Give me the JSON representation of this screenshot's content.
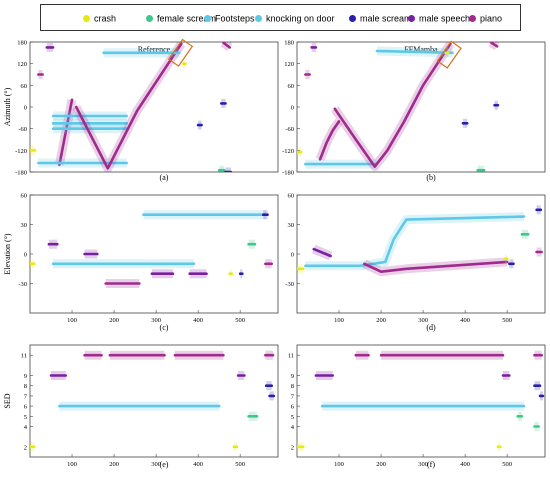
{
  "legend": [
    {
      "label": "crash",
      "color": "#e8e814"
    },
    {
      "label": "female scream",
      "color": "#3ec98a"
    },
    {
      "label": "Footsteps",
      "color": "#5ec8e6"
    },
    {
      "label": "knocking on door",
      "color": "#5ec8e6"
    },
    {
      "label": "male scream",
      "color": "#2a1fa8"
    },
    {
      "label": "male speech",
      "color": "#7a1fa0"
    },
    {
      "label": "piano",
      "color": "#a02a8e"
    }
  ],
  "chart_data": [
    {
      "type": "line",
      "panel": "(a)",
      "title": "Reference",
      "ylabel": "Azimuth (°)",
      "ylim": [
        -180,
        180
      ],
      "yticks": [
        -180,
        -120,
        -60,
        0,
        60,
        120,
        180
      ],
      "xticks": [],
      "xlim": [
        0,
        590
      ],
      "segments": [
        {
          "event": "crash",
          "x": [
            0,
            12
          ],
          "y": [
            -120,
            -120
          ]
        },
        {
          "event": "piano",
          "x": [
            20,
            30
          ],
          "y": [
            90,
            90
          ]
        },
        {
          "event": "male speech",
          "x": [
            40,
            55
          ],
          "y": [
            165,
            165
          ]
        },
        {
          "event": "piano",
          "x": [
            70,
            100
          ],
          "y": [
            -160,
            20
          ]
        },
        {
          "event": "Footsteps",
          "x": [
            20,
            230
          ],
          "y": [
            -155,
            -155
          ]
        },
        {
          "event": "knocking on door",
          "x": [
            55,
            230
          ],
          "y": [
            -60,
            -60
          ]
        },
        {
          "event": "knocking on door",
          "x": [
            55,
            230
          ],
          "y": [
            -45,
            -45
          ]
        },
        {
          "event": "knocking on door",
          "x": [
            55,
            230
          ],
          "y": [
            -25,
            -25
          ]
        },
        {
          "event": "piano",
          "x": [
            110,
            185,
            255,
            360
          ],
          "y": [
            0,
            -170,
            -10,
            175
          ]
        },
        {
          "event": "Footsteps",
          "x": [
            175,
            355
          ],
          "y": [
            150,
            150
          ]
        },
        {
          "event": "crash",
          "x": [
            365,
            370
          ],
          "y": [
            120,
            120
          ]
        },
        {
          "event": "male scream",
          "x": [
            400,
            408
          ],
          "y": [
            -50,
            -50
          ]
        },
        {
          "event": "male scream",
          "x": [
            455,
            465
          ],
          "y": [
            10,
            10
          ]
        },
        {
          "event": "piano",
          "x": [
            460,
            475
          ],
          "y": [
            178,
            165
          ]
        },
        {
          "event": "female scream",
          "x": [
            450,
            462
          ],
          "y": [
            -175,
            -175
          ]
        },
        {
          "event": "male scream",
          "x": [
            465,
            478
          ],
          "y": [
            -180,
            -180
          ]
        }
      ]
    },
    {
      "type": "line",
      "panel": "(b)",
      "title": "FFMamba",
      "ylabel": "",
      "ylim": [
        -180,
        180
      ],
      "yticks": [
        -180,
        -120,
        -60,
        0,
        60,
        120,
        180
      ],
      "xticks": [],
      "xlim": [
        0,
        590
      ],
      "segments": [
        {
          "event": "crash",
          "x": [
            0,
            10
          ],
          "y": [
            -125,
            -125
          ]
        },
        {
          "event": "piano",
          "x": [
            20,
            30
          ],
          "y": [
            90,
            90
          ]
        },
        {
          "event": "male speech",
          "x": [
            35,
            45
          ],
          "y": [
            165,
            165
          ]
        },
        {
          "event": "piano",
          "x": [
            55,
            70,
            85,
            100
          ],
          "y": [
            -145,
            -100,
            -65,
            -40
          ]
        },
        {
          "event": "Footsteps",
          "x": [
            20,
            190
          ],
          "y": [
            -158,
            -158
          ]
        },
        {
          "event": "piano",
          "x": [
            90,
            140,
            185,
            215,
            255,
            300,
            365
          ],
          "y": [
            -5,
            -90,
            -165,
            -120,
            -40,
            60,
            175
          ]
        },
        {
          "event": "knocking on door",
          "x": [
            190,
            370
          ],
          "y": [
            155,
            150
          ]
        },
        {
          "event": "crash",
          "x": [
            355,
            360
          ],
          "y": [
            150,
            150
          ]
        },
        {
          "event": "male scream",
          "x": [
            395,
            405
          ],
          "y": [
            -45,
            -45
          ]
        },
        {
          "event": "female scream",
          "x": [
            430,
            445
          ],
          "y": [
            -175,
            -175
          ]
        },
        {
          "event": "male scream",
          "x": [
            470,
            478
          ],
          "y": [
            5,
            5
          ]
        },
        {
          "event": "piano",
          "x": [
            462,
            476
          ],
          "y": [
            178,
            168
          ]
        }
      ]
    },
    {
      "type": "line",
      "panel": "(c)",
      "title": "",
      "ylabel": "Elevation (°)",
      "ylim": [
        -60,
        60
      ],
      "yticks": [
        -30,
        0,
        30,
        60
      ],
      "xticks": [
        100,
        200,
        300,
        400,
        500
      ],
      "xlim": [
        0,
        590
      ],
      "segments": [
        {
          "event": "crash",
          "x": [
            0,
            10
          ],
          "y": [
            -10,
            -10
          ]
        },
        {
          "event": "male speech",
          "x": [
            45,
            65
          ],
          "y": [
            10,
            10
          ]
        },
        {
          "event": "Footsteps",
          "x": [
            55,
            390
          ],
          "y": [
            -10,
            -10
          ]
        },
        {
          "event": "male speech",
          "x": [
            130,
            160
          ],
          "y": [
            0,
            0
          ]
        },
        {
          "event": "piano",
          "x": [
            180,
            260
          ],
          "y": [
            -30,
            -30
          ]
        },
        {
          "event": "male speech",
          "x": [
            290,
            340
          ],
          "y": [
            -20,
            -20
          ]
        },
        {
          "event": "male speech",
          "x": [
            380,
            420
          ],
          "y": [
            -20,
            -20
          ]
        },
        {
          "event": "knocking on door",
          "x": [
            270,
            560
          ],
          "y": [
            40,
            40
          ]
        },
        {
          "event": "female scream",
          "x": [
            520,
            535
          ],
          "y": [
            10,
            10
          ]
        },
        {
          "event": "crash",
          "x": [
            475,
            480
          ],
          "y": [
            -20,
            -20
          ]
        },
        {
          "event": "male scream",
          "x": [
            555,
            565
          ],
          "y": [
            40,
            40
          ]
        },
        {
          "event": "piano",
          "x": [
            560,
            575
          ],
          "y": [
            -10,
            -10
          ]
        },
        {
          "event": "male scream",
          "x": [
            500,
            505
          ],
          "y": [
            -20,
            -20
          ]
        }
      ]
    },
    {
      "type": "line",
      "panel": "(d)",
      "title": "",
      "ylabel": "",
      "ylim": [
        -60,
        60
      ],
      "yticks": [
        -30,
        0,
        30,
        60
      ],
      "xticks": [
        100,
        200,
        300,
        400,
        500
      ],
      "xlim": [
        0,
        590
      ],
      "segments": [
        {
          "event": "crash",
          "x": [
            0,
            15
          ],
          "y": [
            -15,
            -15
          ]
        },
        {
          "event": "male speech",
          "x": [
            40,
            80
          ],
          "y": [
            5,
            -2
          ]
        },
        {
          "event": "Footsteps",
          "x": [
            20,
            150,
            210,
            230,
            260,
            540
          ],
          "y": [
            -12,
            -12,
            -8,
            15,
            35,
            38
          ]
        },
        {
          "event": "piano",
          "x": [
            160,
            200,
            260,
            500
          ],
          "y": [
            -10,
            -18,
            -15,
            -8
          ]
        },
        {
          "event": "male scream",
          "x": [
            505,
            515
          ],
          "y": [
            -10,
            -10
          ]
        },
        {
          "event": "crash",
          "x": [
            495,
            500
          ],
          "y": [
            -5,
            -5
          ]
        },
        {
          "event": "female scream",
          "x": [
            535,
            550
          ],
          "y": [
            20,
            20
          ]
        },
        {
          "event": "male scream",
          "x": [
            570,
            580
          ],
          "y": [
            45,
            45
          ]
        },
        {
          "event": "piano",
          "x": [
            570,
            582
          ],
          "y": [
            2,
            2
          ]
        }
      ]
    },
    {
      "type": "line",
      "panel": "(e)",
      "title": "",
      "ylabel": "SED",
      "ylim": [
        1,
        12
      ],
      "yticks": [
        2,
        4,
        5,
        6,
        7,
        8,
        9,
        11
      ],
      "xticks": [
        100,
        200,
        300,
        400,
        500
      ],
      "xlim": [
        0,
        590
      ],
      "segments": [
        {
          "event": "crash",
          "x": [
            0,
            10
          ],
          "y": [
            2,
            2
          ]
        },
        {
          "event": "male speech",
          "x": [
            50,
            85
          ],
          "y": [
            9,
            9
          ]
        },
        {
          "event": "Footsteps",
          "x": [
            70,
            450
          ],
          "y": [
            6,
            6
          ]
        },
        {
          "event": "piano",
          "x": [
            130,
            170
          ],
          "y": [
            11,
            11
          ]
        },
        {
          "event": "piano",
          "x": [
            190,
            320
          ],
          "y": [
            11,
            11
          ]
        },
        {
          "event": "piano",
          "x": [
            345,
            460
          ],
          "y": [
            11,
            11
          ]
        },
        {
          "event": "male speech",
          "x": [
            495,
            510
          ],
          "y": [
            9,
            9
          ]
        },
        {
          "event": "crash",
          "x": [
            485,
            492
          ],
          "y": [
            2,
            2
          ]
        },
        {
          "event": "female scream",
          "x": [
            520,
            540
          ],
          "y": [
            5,
            5
          ]
        },
        {
          "event": "male scream",
          "x": [
            562,
            575
          ],
          "y": [
            8,
            8
          ]
        },
        {
          "event": "male scream",
          "x": [
            570,
            580
          ],
          "y": [
            7,
            7
          ]
        },
        {
          "event": "piano",
          "x": [
            560,
            578
          ],
          "y": [
            11,
            11
          ]
        }
      ]
    },
    {
      "type": "line",
      "panel": "(f)",
      "title": "",
      "ylabel": "",
      "ylim": [
        1,
        12
      ],
      "yticks": [
        2,
        4,
        5,
        6,
        7,
        8,
        9,
        11
      ],
      "xticks": [
        100,
        200,
        300,
        400,
        500
      ],
      "xlim": [
        0,
        590
      ],
      "segments": [
        {
          "event": "crash",
          "x": [
            0,
            15
          ],
          "y": [
            2,
            2
          ]
        },
        {
          "event": "male speech",
          "x": [
            45,
            85
          ],
          "y": [
            9,
            9
          ]
        },
        {
          "event": "Footsteps",
          "x": [
            60,
            540
          ],
          "y": [
            6,
            6
          ]
        },
        {
          "event": "piano",
          "x": [
            140,
            170
          ],
          "y": [
            11,
            11
          ]
        },
        {
          "event": "piano",
          "x": [
            200,
            490
          ],
          "y": [
            11,
            11
          ]
        },
        {
          "event": "male speech",
          "x": [
            490,
            505
          ],
          "y": [
            9,
            9
          ]
        },
        {
          "event": "crash",
          "x": [
            478,
            484
          ],
          "y": [
            2,
            2
          ]
        },
        {
          "event": "female scream",
          "x": [
            525,
            535
          ],
          "y": [
            5,
            5
          ]
        },
        {
          "event": "female scream",
          "x": [
            565,
            575
          ],
          "y": [
            4,
            4
          ]
        },
        {
          "event": "male scream",
          "x": [
            565,
            578
          ],
          "y": [
            8,
            8
          ]
        },
        {
          "event": "male scream",
          "x": [
            578,
            585
          ],
          "y": [
            7,
            7
          ]
        },
        {
          "event": "piano",
          "x": [
            565,
            582
          ],
          "y": [
            11,
            11
          ]
        }
      ]
    }
  ]
}
